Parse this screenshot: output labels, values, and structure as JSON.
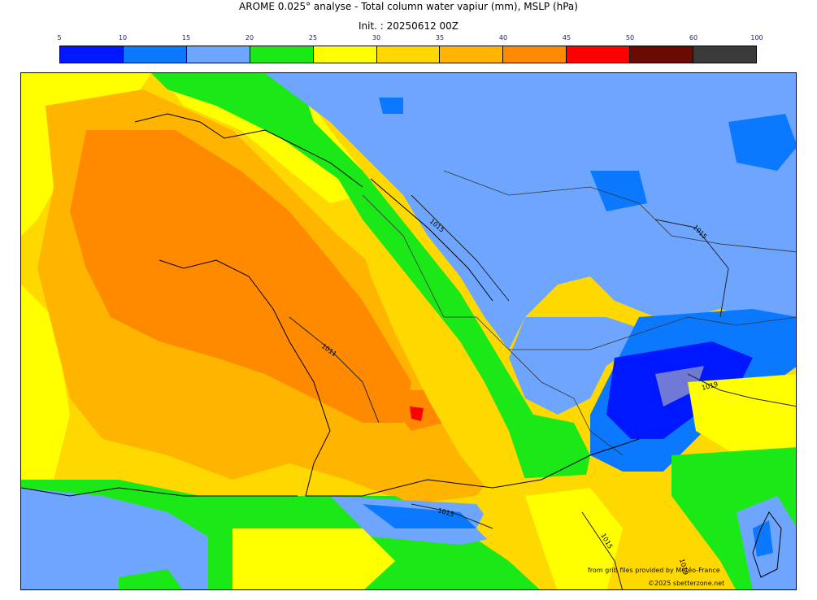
{
  "title": "AROME 0.025° analyse - Total column water vapiur (mm), MSLP (hPa)",
  "init": "Init. : 20250612 00Z",
  "colorbar": {
    "ticks": [
      "5",
      "10",
      "15",
      "20",
      "25",
      "30",
      "35",
      "40",
      "45",
      "50",
      "60",
      "100"
    ],
    "colors": [
      "#0018ff",
      "#0a78ff",
      "#6ea6ff",
      "#1ae817",
      "#ffff00",
      "#ffd800",
      "#ffb400",
      "#ff8a00",
      "#ff0000",
      "#6b0a00",
      "#3a3a3a"
    ]
  },
  "isobar_labels": [
    "1015",
    "1015",
    "1011",
    "1019",
    "1015",
    "1015",
    "1019"
  ],
  "credits": {
    "source": "from grib files provided by Météo-France",
    "copyright": "©2025 sbetterzone.net"
  }
}
